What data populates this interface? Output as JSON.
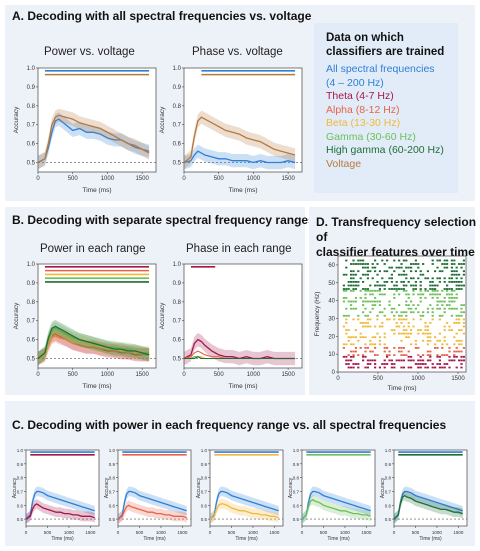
{
  "panelA": {
    "title": "A. Decoding with all spectral frequencies vs. voltage",
    "left_subtitle": "Power vs. voltage",
    "right_subtitle": "Phase vs. voltage"
  },
  "legend": {
    "title": "Data on which\nclassifiers are trained",
    "items": [
      {
        "label": "All spectral frequencies\n(4 – 200 Hz)",
        "color": "#2e7fd6"
      },
      {
        "label": "Theta (4-7 Hz)",
        "color": "#a3174a"
      },
      {
        "label": "Alpha (8-12 Hz)",
        "color": "#e8624a"
      },
      {
        "label": "Beta (13-30 Hz)",
        "color": "#f0b93a"
      },
      {
        "label": "Gamma (30-60 Hz)",
        "color": "#6cbf5a"
      },
      {
        "label": "High gamma (60-200 Hz)",
        "color": "#1f6e36"
      },
      {
        "label": "Voltage",
        "color": "#b5793f"
      }
    ]
  },
  "panelB": {
    "title": "B. Decoding with separate spectral frequency ranges",
    "left_subtitle": "Power in each range",
    "right_subtitle": "Phase in each range"
  },
  "panelD": {
    "title": "D. Transfrequency selection of\nclassifier features over time"
  },
  "panelC": {
    "title": "C. Decoding with power in each frequency range vs. all spectral frequencies"
  },
  "axis": {
    "xlabel": "Time (ms)",
    "ylabel": "Accuracy",
    "freq_ylabel": "Frequency (Hz)",
    "xticks": [
      "0",
      "500",
      "1000",
      "1500"
    ],
    "yticks": [
      "0.5",
      "0.6",
      "0.7",
      "0.8",
      "0.9",
      "1.0"
    ],
    "freq_yticks": [
      "0",
      "10",
      "20",
      "30",
      "40",
      "50",
      "60"
    ]
  },
  "chart_data": [
    {
      "id": "A-power",
      "type": "line",
      "xlim": [
        0,
        1700
      ],
      "ylim": [
        0.45,
        1.0
      ],
      "chance": 0.5,
      "x": [
        0,
        100,
        150,
        200,
        250,
        300,
        400,
        500,
        600,
        700,
        800,
        900,
        1000,
        1100,
        1200,
        1300,
        1400,
        1500,
        1600
      ],
      "series": [
        {
          "name": "All spectral frequencies",
          "color": "#2e7fd6",
          "values": [
            0.5,
            0.52,
            0.58,
            0.66,
            0.72,
            0.73,
            0.7,
            0.67,
            0.68,
            0.66,
            0.66,
            0.65,
            0.63,
            0.62,
            0.62,
            0.6,
            0.58,
            0.57,
            0.56
          ]
        },
        {
          "name": "Voltage",
          "color": "#b5793f",
          "values": [
            0.5,
            0.52,
            0.6,
            0.7,
            0.74,
            0.75,
            0.74,
            0.73,
            0.71,
            0.7,
            0.69,
            0.68,
            0.66,
            0.64,
            0.62,
            0.6,
            0.59,
            0.57,
            0.55
          ]
        }
      ]
    },
    {
      "id": "A-phase",
      "type": "line",
      "xlim": [
        0,
        1700
      ],
      "ylim": [
        0.45,
        1.0
      ],
      "chance": 0.5,
      "x": [
        0,
        100,
        150,
        200,
        250,
        300,
        400,
        500,
        600,
        700,
        800,
        900,
        1000,
        1100,
        1200,
        1300,
        1400,
        1500,
        1600
      ],
      "series": [
        {
          "name": "All spectral frequencies",
          "color": "#2e7fd6",
          "values": [
            0.5,
            0.51,
            0.54,
            0.56,
            0.55,
            0.54,
            0.53,
            0.52,
            0.52,
            0.51,
            0.51,
            0.51,
            0.5,
            0.51,
            0.5,
            0.5,
            0.5,
            0.51,
            0.5
          ]
        },
        {
          "name": "Voltage",
          "color": "#b5793f",
          "values": [
            0.5,
            0.53,
            0.64,
            0.72,
            0.74,
            0.73,
            0.71,
            0.69,
            0.67,
            0.66,
            0.65,
            0.63,
            0.62,
            0.61,
            0.59,
            0.57,
            0.56,
            0.55,
            0.54
          ]
        }
      ]
    },
    {
      "id": "B-power",
      "type": "line",
      "xlim": [
        0,
        1700
      ],
      "ylim": [
        0.45,
        1.0
      ],
      "chance": 0.5,
      "x": [
        0,
        100,
        150,
        200,
        250,
        300,
        400,
        500,
        600,
        700,
        800,
        900,
        1000,
        1100,
        1200,
        1300,
        1400,
        1500,
        1600
      ],
      "series": [
        {
          "name": "Theta",
          "color": "#a3174a",
          "values": [
            0.5,
            0.52,
            0.58,
            0.62,
            0.63,
            0.62,
            0.6,
            0.58,
            0.57,
            0.56,
            0.56,
            0.55,
            0.54,
            0.54,
            0.53,
            0.53,
            0.52,
            0.52,
            0.52
          ]
        },
        {
          "name": "Alpha",
          "color": "#e8624a",
          "values": [
            0.5,
            0.52,
            0.57,
            0.61,
            0.62,
            0.61,
            0.6,
            0.58,
            0.57,
            0.56,
            0.56,
            0.55,
            0.55,
            0.54,
            0.54,
            0.53,
            0.53,
            0.52,
            0.52
          ]
        },
        {
          "name": "Beta",
          "color": "#f0b93a",
          "values": [
            0.5,
            0.52,
            0.58,
            0.63,
            0.64,
            0.63,
            0.62,
            0.6,
            0.59,
            0.58,
            0.57,
            0.56,
            0.55,
            0.55,
            0.54,
            0.54,
            0.53,
            0.53,
            0.52
          ]
        },
        {
          "name": "Gamma",
          "color": "#6cbf5a",
          "values": [
            0.5,
            0.53,
            0.6,
            0.65,
            0.66,
            0.65,
            0.63,
            0.61,
            0.6,
            0.59,
            0.58,
            0.57,
            0.56,
            0.56,
            0.55,
            0.55,
            0.54,
            0.53,
            0.53
          ]
        },
        {
          "name": "High gamma",
          "color": "#1f6e36",
          "values": [
            0.5,
            0.53,
            0.61,
            0.66,
            0.67,
            0.66,
            0.64,
            0.62,
            0.6,
            0.59,
            0.58,
            0.57,
            0.56,
            0.55,
            0.55,
            0.54,
            0.54,
            0.53,
            0.52
          ]
        }
      ]
    },
    {
      "id": "B-phase",
      "type": "line",
      "xlim": [
        0,
        1700
      ],
      "ylim": [
        0.45,
        1.0
      ],
      "chance": 0.5,
      "x": [
        0,
        100,
        150,
        200,
        250,
        300,
        400,
        500,
        600,
        700,
        800,
        900,
        1000,
        1100,
        1200,
        1300,
        1400,
        1500,
        1600
      ],
      "series": [
        {
          "name": "Theta",
          "color": "#a3174a",
          "values": [
            0.5,
            0.52,
            0.58,
            0.6,
            0.59,
            0.57,
            0.54,
            0.52,
            0.51,
            0.51,
            0.5,
            0.51,
            0.5,
            0.5,
            0.51,
            0.5,
            0.5,
            0.5,
            0.5
          ]
        },
        {
          "name": "Alpha",
          "color": "#e8624a",
          "values": [
            0.5,
            0.51,
            0.53,
            0.54,
            0.53,
            0.52,
            0.51,
            0.51,
            0.5,
            0.5,
            0.5,
            0.5,
            0.5,
            0.5,
            0.5,
            0.5,
            0.5,
            0.5,
            0.5
          ]
        },
        {
          "name": "Beta",
          "color": "#f0b93a",
          "values": [
            0.5,
            0.5,
            0.51,
            0.51,
            0.51,
            0.5,
            0.5,
            0.5,
            0.5,
            0.5,
            0.5,
            0.5,
            0.5,
            0.5,
            0.5,
            0.5,
            0.5,
            0.5,
            0.5
          ]
        },
        {
          "name": "Gamma",
          "color": "#6cbf5a",
          "values": [
            0.5,
            0.5,
            0.51,
            0.51,
            0.5,
            0.5,
            0.5,
            0.5,
            0.5,
            0.5,
            0.5,
            0.5,
            0.5,
            0.5,
            0.5,
            0.5,
            0.5,
            0.5,
            0.5
          ]
        },
        {
          "name": "High gamma",
          "color": "#1f6e36",
          "values": [
            0.5,
            0.5,
            0.5,
            0.51,
            0.5,
            0.5,
            0.5,
            0.5,
            0.5,
            0.5,
            0.5,
            0.5,
            0.5,
            0.5,
            0.5,
            0.5,
            0.5,
            0.5,
            0.5
          ]
        }
      ]
    },
    {
      "id": "D-transfrequency",
      "type": "heatmap",
      "xlim": [
        0,
        1600
      ],
      "ylim": [
        0,
        65
      ],
      "bands": [
        {
          "name": "Theta",
          "color": "#a3174a",
          "range_hz": [
            4,
            7
          ]
        },
        {
          "name": "Alpha",
          "color": "#e8624a",
          "range_hz": [
            8,
            12
          ]
        },
        {
          "name": "Beta",
          "color": "#f0b93a",
          "range_hz": [
            13,
            30
          ]
        },
        {
          "name": "Gamma",
          "color": "#6cbf5a",
          "range_hz": [
            30,
            60
          ]
        },
        {
          "name": "High gamma",
          "color": "#1f6e36",
          "range_hz": [
            60,
            200
          ]
        }
      ]
    },
    {
      "id": "C-panels",
      "type": "line",
      "xlim": [
        0,
        1700
      ],
      "ylim": [
        0.45,
        1.0
      ],
      "chance": 0.5,
      "x": [
        0,
        100,
        150,
        200,
        250,
        300,
        400,
        500,
        600,
        700,
        800,
        900,
        1000,
        1100,
        1200,
        1300,
        1400,
        1500,
        1600
      ],
      "reference": {
        "name": "All spectral frequencies",
        "color": "#2e7fd6",
        "values": [
          0.5,
          0.53,
          0.62,
          0.68,
          0.7,
          0.7,
          0.69,
          0.67,
          0.66,
          0.65,
          0.64,
          0.63,
          0.62,
          0.61,
          0.6,
          0.59,
          0.58,
          0.57,
          0.56
        ]
      },
      "comparisons": [
        {
          "name": "Theta",
          "color": "#a3174a",
          "values": [
            0.5,
            0.52,
            0.57,
            0.6,
            0.61,
            0.6,
            0.58,
            0.57,
            0.56,
            0.55,
            0.55,
            0.54,
            0.54,
            0.53,
            0.53,
            0.52,
            0.52,
            0.52,
            0.51
          ]
        },
        {
          "name": "Alpha",
          "color": "#e8624a",
          "values": [
            0.5,
            0.52,
            0.56,
            0.59,
            0.6,
            0.59,
            0.58,
            0.57,
            0.56,
            0.55,
            0.55,
            0.54,
            0.54,
            0.53,
            0.53,
            0.52,
            0.52,
            0.52,
            0.51
          ]
        },
        {
          "name": "Beta",
          "color": "#f0b93a",
          "values": [
            0.5,
            0.52,
            0.57,
            0.6,
            0.61,
            0.61,
            0.6,
            0.58,
            0.57,
            0.56,
            0.56,
            0.55,
            0.54,
            0.54,
            0.53,
            0.53,
            0.52,
            0.52,
            0.51
          ]
        },
        {
          "name": "Gamma",
          "color": "#6cbf5a",
          "values": [
            0.5,
            0.53,
            0.59,
            0.63,
            0.64,
            0.63,
            0.62,
            0.6,
            0.59,
            0.58,
            0.57,
            0.56,
            0.56,
            0.55,
            0.54,
            0.54,
            0.53,
            0.53,
            0.52
          ]
        },
        {
          "name": "High gamma",
          "color": "#1f6e36",
          "values": [
            0.5,
            0.53,
            0.61,
            0.66,
            0.67,
            0.66,
            0.65,
            0.63,
            0.62,
            0.61,
            0.6,
            0.59,
            0.58,
            0.57,
            0.57,
            0.56,
            0.55,
            0.55,
            0.54
          ]
        }
      ]
    }
  ]
}
